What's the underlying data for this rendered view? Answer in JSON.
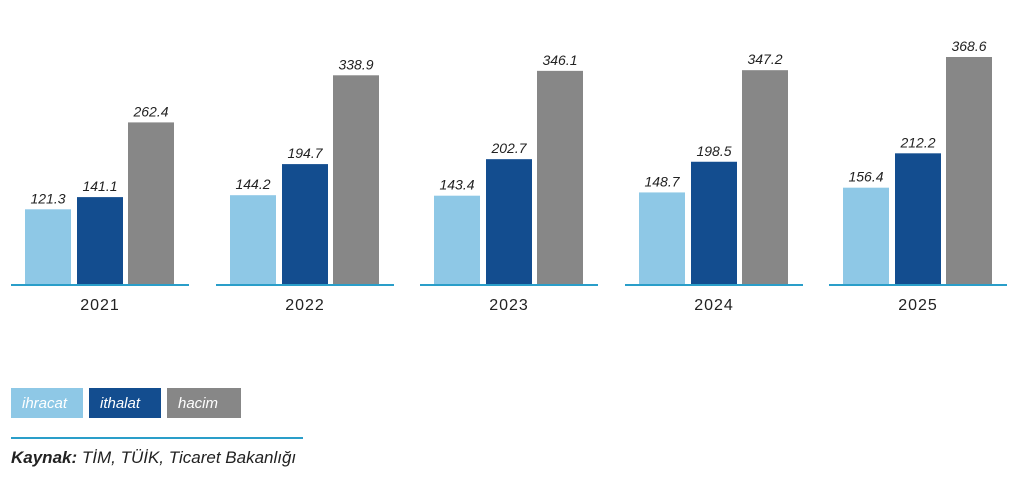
{
  "chart_data": {
    "type": "bar",
    "categories": [
      "2021",
      "2022",
      "2023",
      "2024",
      "2025"
    ],
    "series": [
      {
        "name": "ihracat",
        "color": "#8ec8e6",
        "values": [
          121.3,
          144.2,
          143.4,
          148.7,
          156.4
        ]
      },
      {
        "name": "ithalat",
        "color": "#134d8f",
        "values": [
          141.1,
          194.7,
          202.7,
          198.5,
          212.2
        ]
      },
      {
        "name": "hacim",
        "color": "#878787",
        "values": [
          262.4,
          338.9,
          346.1,
          347.2,
          368.6
        ]
      }
    ],
    "value_labels": [
      [
        "121.3",
        "144.2",
        "143.4",
        "148.7",
        "156.4"
      ],
      [
        "141.1",
        "194.7",
        "202.7",
        "198.5",
        "212.2"
      ],
      [
        "262.4",
        "338.9",
        "346.1",
        "347.2",
        "368.6"
      ]
    ],
    "ylim": [
      0,
      380
    ],
    "grid": false,
    "legend_position": "bottom-left",
    "baseline_color": "#2a9ec9"
  },
  "legend": {
    "items": [
      "ihracat",
      "ithalat",
      "hacim"
    ]
  },
  "source": {
    "label": "Kaynak:",
    "text": " TİM, TÜİK, Ticaret Bakanlığı"
  }
}
